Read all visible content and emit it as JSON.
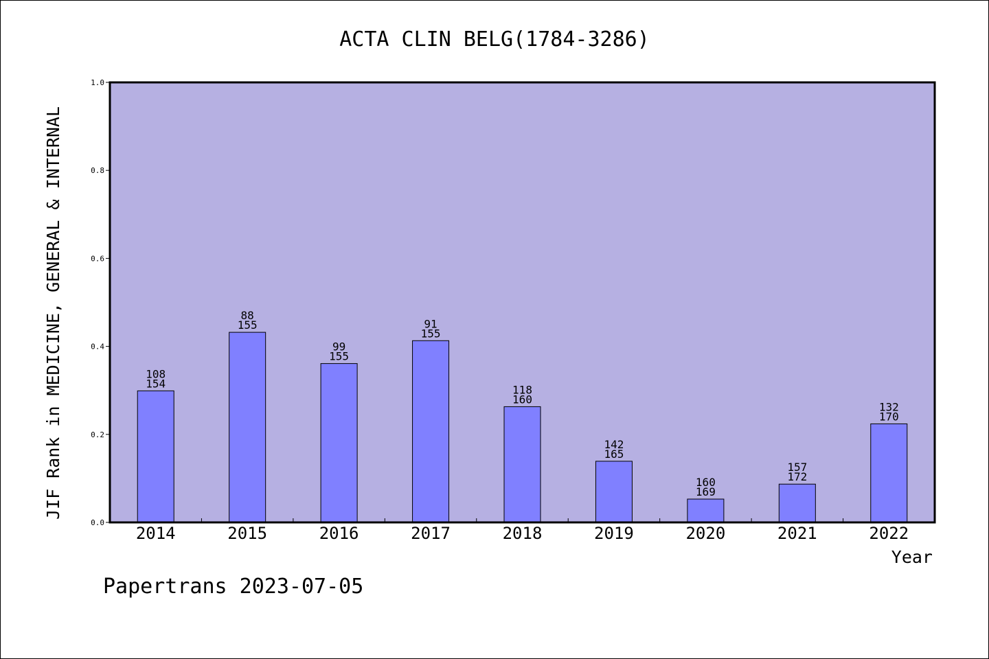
{
  "footer": "Papertrans 2023-07-05",
  "colors": {
    "plot_bg": "#b6b0e2",
    "bar_fill": "#8080ff",
    "axis": "#000000"
  },
  "chart_data": {
    "type": "bar",
    "title": "ACTA CLIN BELG(1784-3286)",
    "xlabel": "Year",
    "ylabel": "JIF Rank in MEDICINE, GENERAL & INTERNAL",
    "ylim": [
      0,
      1.0
    ],
    "yticks": [
      "0.0",
      "0.2",
      "0.4",
      "0.6",
      "0.8",
      "1.0"
    ],
    "grid": false,
    "categories": [
      "2014",
      "2015",
      "2016",
      "2017",
      "2018",
      "2019",
      "2020",
      "2021",
      "2022"
    ],
    "values": [
      0.299,
      0.432,
      0.361,
      0.413,
      0.263,
      0.139,
      0.053,
      0.087,
      0.224
    ],
    "rank": [
      "108",
      "88",
      "99",
      "91",
      "118",
      "142",
      "160",
      "157",
      "132"
    ],
    "total": [
      "154",
      "155",
      "155",
      "155",
      "160",
      "165",
      "169",
      "172",
      "170"
    ]
  }
}
